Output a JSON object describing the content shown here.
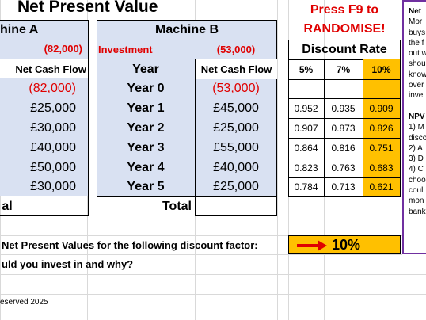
{
  "page_title": "Net Present Value",
  "press": {
    "line1": "Press F9 to",
    "line2": "RANDOMISE!"
  },
  "machine_a": {
    "title": "hine A",
    "investment_value": "(82,000)",
    "header_cash_flow": "Net Cash Flow",
    "cash_flows": [
      "(82,000)",
      "£25,000",
      "£30,000",
      "£40,000",
      "£50,000",
      "£30,000"
    ],
    "total_label": "al"
  },
  "machine_b": {
    "title": "Machine B",
    "investment_label": "Investment",
    "investment_value": "(53,000)",
    "header_year": "Year",
    "header_cash_flow": "Net Cash Flow",
    "rows": [
      {
        "year": "Year 0",
        "cash": "(53,000)"
      },
      {
        "year": "Year 1",
        "cash": "£45,000"
      },
      {
        "year": "Year 2",
        "cash": "£25,000"
      },
      {
        "year": "Year 3",
        "cash": "£55,000"
      },
      {
        "year": "Year 4",
        "cash": "£40,000"
      },
      {
        "year": "Year 5",
        "cash": "£25,000"
      }
    ],
    "total_label": "Total"
  },
  "discount": {
    "title": "Discount Rate",
    "rates": [
      "5%",
      "7%",
      "10%"
    ],
    "factors": [
      [
        "0.952",
        "0.935",
        "0.909"
      ],
      [
        "0.907",
        "0.873",
        "0.826"
      ],
      [
        "0.864",
        "0.816",
        "0.751"
      ],
      [
        "0.823",
        "0.763",
        "0.683"
      ],
      [
        "0.784",
        "0.713",
        "0.621"
      ]
    ]
  },
  "question1": "Net Present Values for the following discount factor:",
  "question2": "uld you invest in and why?",
  "selected_rate": "10%",
  "copyright": "eserved 2025",
  "side_panel": [
    "Net",
    "Mor",
    "buys",
    "the f",
    "out w",
    "shou",
    "know",
    "over",
    "inve",
    "",
    "NPV",
    "1) M",
    "disco",
    "2) A",
    "3) D",
    "4) C",
    "choo",
    "coul",
    "mon",
    "bank"
  ],
  "colors": {
    "blue_fill": "#d9e1f2",
    "orange_fill": "#ffc000",
    "red_text": "#e00000",
    "panel_border": "#7030a0"
  }
}
